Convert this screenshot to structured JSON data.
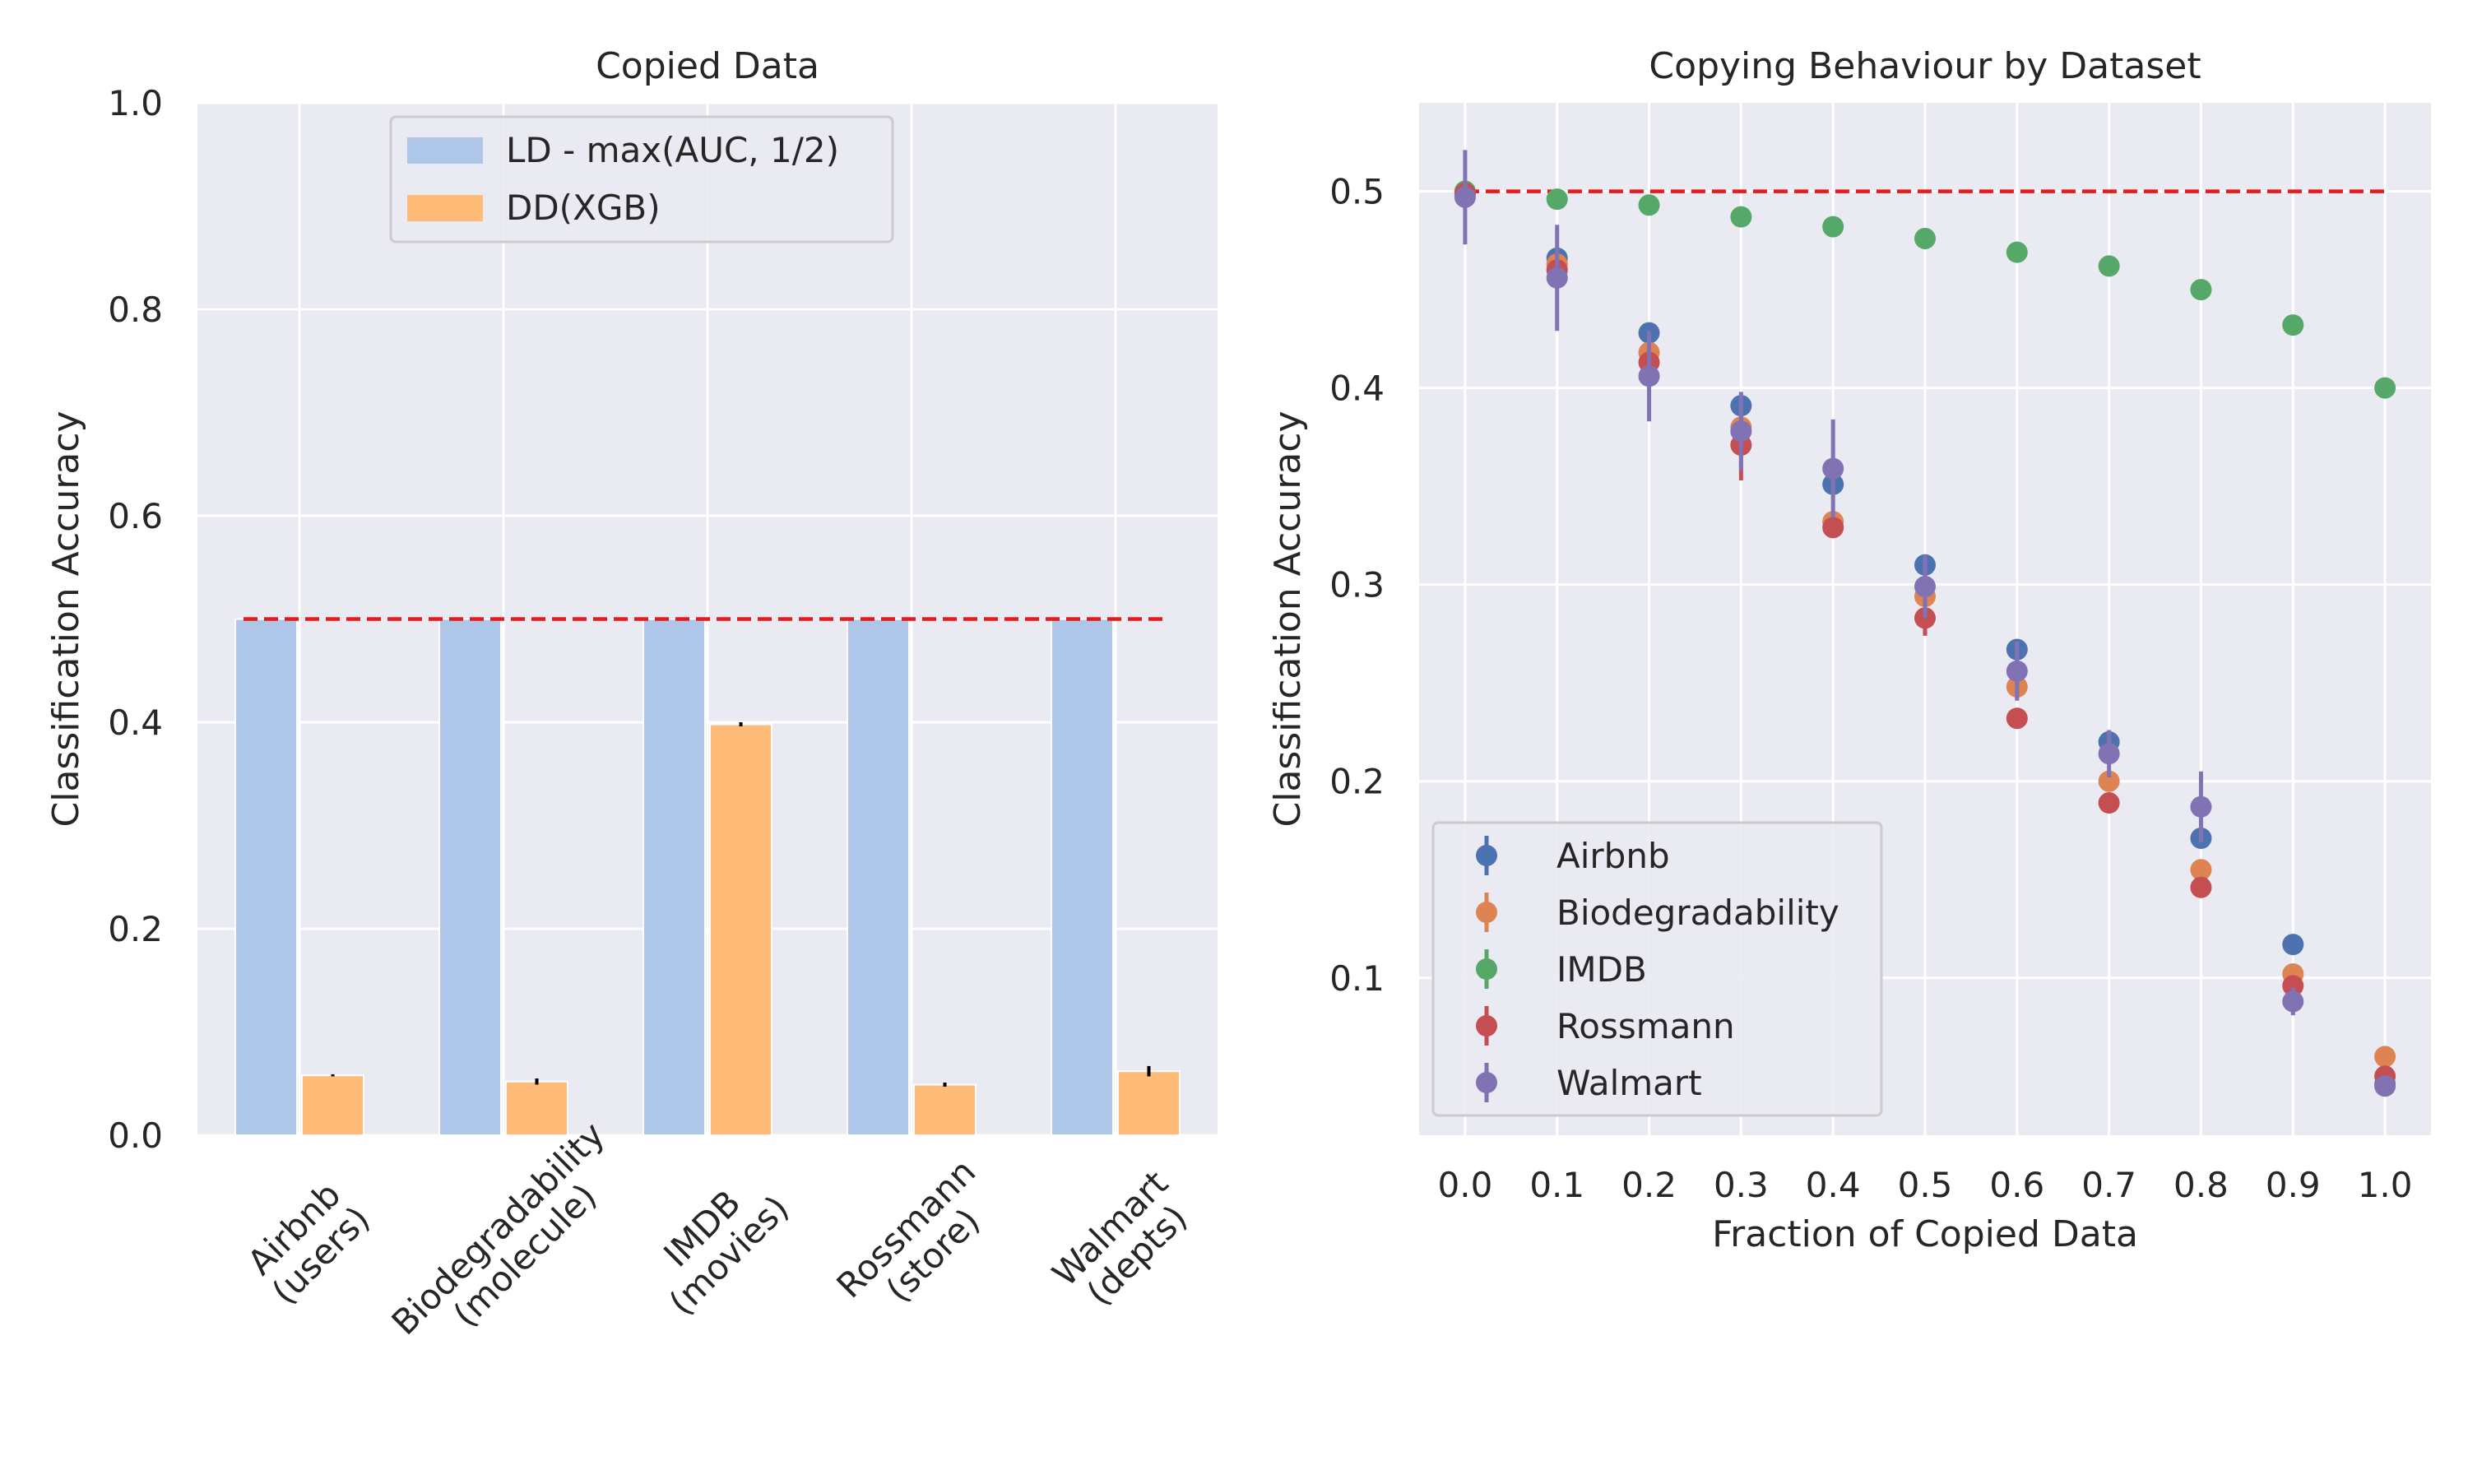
{
  "colors": {
    "plot_bg": "#EAEAF2",
    "grid": "#FFFFFF",
    "text": "#262626",
    "baseline": "#E41A1C",
    "bar_ld": "#AEC7E8",
    "bar_dd": "#FFBB78",
    "airbnb": "#4C72B0",
    "biodegradability": "#DD8452",
    "imdb": "#55A868",
    "rossmann": "#C44E52",
    "walmart": "#8172B3"
  },
  "chart_data": [
    {
      "type": "bar",
      "title": "Copied Data",
      "xlabel": "",
      "ylabel": "Classification Accuracy",
      "ylim": [
        0.0,
        1.0
      ],
      "yticks": [
        0.0,
        0.2,
        0.4,
        0.6,
        0.8,
        1.0
      ],
      "ytick_labels": [
        "0.0",
        "0.2",
        "0.4",
        "0.6",
        "0.8",
        "1.0"
      ],
      "grid": true,
      "legend_position": "top-center",
      "categories": [
        [
          "Airbnb",
          "(users)"
        ],
        [
          "Biodegradability",
          "(molecule)"
        ],
        [
          "IMDB",
          "(movies)"
        ],
        [
          "Rossmann",
          "(store)"
        ],
        [
          "Walmart",
          "(depts)"
        ]
      ],
      "series": [
        {
          "name": "LD - max(AUC, 1/2)",
          "color_key": "bar_ld",
          "values": [
            0.5,
            0.5,
            0.5,
            0.5,
            0.5
          ],
          "errors": [
            0,
            0,
            0,
            0,
            0
          ]
        },
        {
          "name": "DD(XGB)",
          "color_key": "bar_dd",
          "values": [
            0.058,
            0.052,
            0.398,
            0.049,
            0.062
          ],
          "errors": [
            0.001,
            0.003,
            0.002,
            0.002,
            0.005
          ]
        }
      ],
      "reference_line": {
        "y": 0.5,
        "style": "dashed"
      }
    },
    {
      "type": "scatter",
      "title": "Copying Behaviour by Dataset",
      "xlabel": "Fraction of Copied Data",
      "ylabel": "Classification Accuracy",
      "xlim": [
        -0.05,
        1.05
      ],
      "ylim": [
        0.02,
        0.545
      ],
      "xticks": [
        0.0,
        0.1,
        0.2,
        0.3,
        0.4,
        0.5,
        0.6,
        0.7,
        0.8,
        0.9,
        1.0
      ],
      "xtick_labels": [
        "0.0",
        "0.1",
        "0.2",
        "0.3",
        "0.4",
        "0.5",
        "0.6",
        "0.7",
        "0.8",
        "0.9",
        "1.0"
      ],
      "yticks": [
        0.1,
        0.2,
        0.3,
        0.4,
        0.5
      ],
      "ytick_labels": [
        "0.1",
        "0.2",
        "0.3",
        "0.4",
        "0.5"
      ],
      "grid": true,
      "legend_position": "lower-left",
      "x": [
        0.0,
        0.1,
        0.2,
        0.3,
        0.4,
        0.5,
        0.6,
        0.7,
        0.8,
        0.9,
        1.0
      ],
      "series": [
        {
          "name": "Airbnb",
          "color_key": "airbnb",
          "values": [
            0.499,
            0.466,
            0.428,
            0.391,
            0.351,
            0.31,
            0.267,
            0.22,
            0.171,
            0.117,
            0.046
          ],
          "errors": [
            0.003,
            0.004,
            0.005,
            0.004,
            0.004,
            0.004,
            0.004,
            0.004,
            0.003,
            0.003,
            0.003
          ]
        },
        {
          "name": "Biodegradability",
          "color_key": "biodegradability",
          "values": [
            0.5,
            0.463,
            0.418,
            0.38,
            0.332,
            0.294,
            0.248,
            0.2,
            0.155,
            0.102,
            0.06
          ],
          "errors": [
            0.003,
            0.005,
            0.004,
            0.004,
            0.004,
            0.004,
            0.004,
            0.003,
            0.003,
            0.003,
            0.003
          ]
        },
        {
          "name": "IMDB",
          "color_key": "imdb",
          "values": [
            0.5,
            0.496,
            0.493,
            0.487,
            0.482,
            0.476,
            0.469,
            0.462,
            0.45,
            0.432,
            0.4
          ],
          "errors": [
            0.001,
            0.001,
            0.001,
            0.001,
            0.001,
            0.001,
            0.001,
            0.001,
            0.001,
            0.001,
            0.001
          ]
        },
        {
          "name": "Rossmann",
          "color_key": "rossmann",
          "values": [
            0.499,
            0.46,
            0.413,
            0.371,
            0.329,
            0.283,
            0.232,
            0.189,
            0.146,
            0.096,
            0.05
          ],
          "errors": [
            0.003,
            0.004,
            0.005,
            0.018,
            0.004,
            0.009,
            0.004,
            0.003,
            0.003,
            0.003,
            0.003
          ]
        },
        {
          "name": "Walmart",
          "color_key": "walmart",
          "values": [
            0.497,
            0.456,
            0.406,
            0.378,
            0.359,
            0.299,
            0.256,
            0.214,
            0.187,
            0.088,
            0.045
          ],
          "errors": [
            0.024,
            0.027,
            0.023,
            0.02,
            0.025,
            0.016,
            0.015,
            0.012,
            0.018,
            0.007,
            0.004
          ]
        }
      ],
      "reference_line": {
        "y": 0.5,
        "x_range": [
          0.0,
          1.0
        ],
        "style": "dashed"
      }
    }
  ]
}
